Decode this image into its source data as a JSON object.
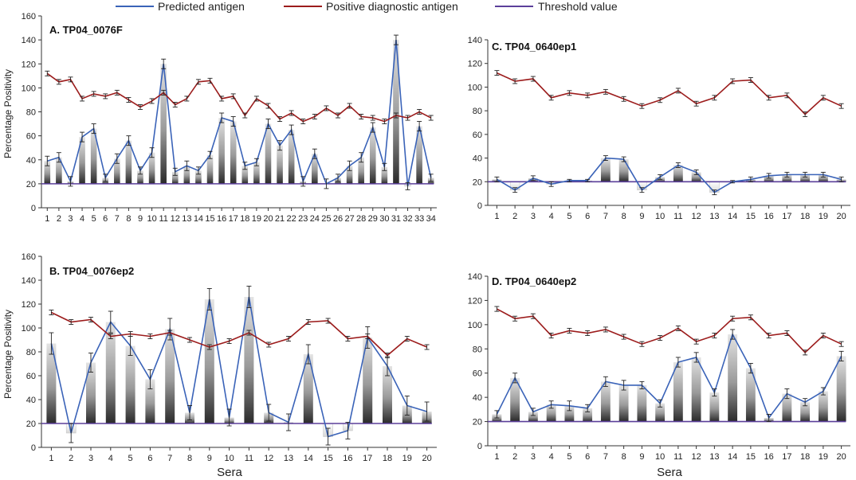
{
  "legend": {
    "predicted": "Predicted antigen",
    "positive": "Positive diagnostic antigen",
    "threshold": "Threshold value"
  },
  "colors": {
    "predicted": "#3a63b8",
    "positive": "#9c1c1c",
    "threshold": "#5b3f9a",
    "axis": "#333333",
    "error": "#222222"
  },
  "chart_data": [
    {
      "id": "A",
      "type": "bar",
      "title": "A. TP04_0076F",
      "ylabel": "Percentage Positivity",
      "xlabel": "",
      "ylim": [
        0,
        160
      ],
      "yticks": [
        0,
        20,
        40,
        60,
        80,
        100,
        120,
        140,
        160
      ],
      "categories": [
        "1",
        "2",
        "3",
        "4",
        "5",
        "6",
        "7",
        "8",
        "9",
        "10",
        "11",
        "12",
        "13",
        "14",
        "15",
        "16",
        "17",
        "18",
        "19",
        "20",
        "21",
        "22",
        "23",
        "24",
        "25",
        "26",
        "27",
        "28",
        "29",
        "30",
        "31",
        "32",
        "33",
        "34"
      ],
      "threshold": 20,
      "series": [
        {
          "name": "Predicted antigen",
          "values": [
            39,
            42,
            22,
            59,
            66,
            25,
            41,
            56,
            31,
            46,
            120,
            30,
            35,
            31,
            44,
            75,
            72,
            35,
            38,
            70,
            52,
            65,
            22,
            45,
            20,
            25,
            35,
            42,
            67,
            34,
            140,
            18,
            68,
            25
          ],
          "errors": [
            4,
            4,
            4,
            4,
            4,
            3,
            4,
            4,
            3,
            4,
            4,
            3,
            4,
            3,
            3,
            4,
            4,
            3,
            3,
            4,
            4,
            4,
            4,
            4,
            4,
            3,
            4,
            4,
            4,
            3,
            4,
            3,
            4,
            3
          ]
        },
        {
          "name": "Positive diagnostic antigen",
          "values": [
            112,
            105,
            107,
            91,
            95,
            93,
            96,
            90,
            84,
            89,
            96,
            86,
            91,
            105,
            106,
            91,
            93,
            77,
            91,
            85,
            74,
            79,
            72,
            76,
            83,
            77,
            85,
            76,
            75,
            72,
            77,
            75,
            80,
            75
          ],
          "errors": [
            2,
            2,
            2,
            2,
            2,
            2,
            2,
            2,
            2,
            2,
            2,
            2,
            2,
            2,
            2,
            2,
            2,
            2,
            2,
            2,
            2,
            2,
            2,
            2,
            2,
            2,
            2,
            2,
            2,
            2,
            2,
            2,
            2,
            2
          ]
        }
      ]
    },
    {
      "id": "B",
      "type": "bar",
      "title": "B. TP04_0076ep2",
      "ylabel": "Percentage Positivity",
      "xlabel": "Sera",
      "ylim": [
        0,
        160
      ],
      "yticks": [
        0,
        20,
        40,
        60,
        80,
        100,
        120,
        140,
        160
      ],
      "categories": [
        "1",
        "2",
        "3",
        "4",
        "5",
        "6",
        "7",
        "8",
        "9",
        "10",
        "11",
        "12",
        "13",
        "14",
        "15",
        "16",
        "17",
        "18",
        "19",
        "20"
      ],
      "threshold": 20,
      "series": [
        {
          "name": "Predicted antigen",
          "values": [
            87,
            12,
            71,
            105,
            85,
            57,
            99,
            29,
            124,
            25,
            126,
            29,
            21,
            78,
            9,
            14,
            92,
            68,
            35,
            30
          ],
          "errors": [
            9,
            8,
            8,
            9,
            8,
            8,
            9,
            6,
            9,
            7,
            9,
            7,
            7,
            8,
            7,
            7,
            9,
            8,
            8,
            8
          ]
        },
        {
          "name": "Positive diagnostic antigen",
          "values": [
            113,
            105,
            107,
            93,
            95,
            93,
            96,
            90,
            84,
            89,
            96,
            86,
            91,
            105,
            106,
            91,
            93,
            77,
            91,
            84
          ],
          "errors": [
            2,
            2,
            2,
            2,
            2,
            2,
            2,
            2,
            2,
            2,
            2,
            2,
            2,
            2,
            2,
            2,
            2,
            2,
            2,
            2
          ]
        }
      ]
    },
    {
      "id": "C",
      "type": "bar",
      "title": "C. TP04_0640ep1",
      "ylabel": "",
      "xlabel": "",
      "ylim": [
        0,
        140
      ],
      "yticks": [
        0,
        20,
        40,
        60,
        80,
        100,
        120,
        140
      ],
      "categories": [
        "1",
        "2",
        "3",
        "4",
        "5",
        "6",
        "7",
        "8",
        "9",
        "10",
        "11",
        "12",
        "13",
        "14",
        "15",
        "16",
        "17",
        "18",
        "19",
        "20"
      ],
      "threshold": 20,
      "series": [
        {
          "name": "Predicted antigen",
          "values": [
            22,
            13,
            23,
            18,
            21,
            21,
            40,
            39,
            13,
            24,
            34,
            28,
            11,
            20,
            22,
            25,
            26,
            26,
            26,
            22
          ],
          "errors": [
            2,
            2,
            2,
            2,
            1,
            1,
            2,
            2,
            2,
            2,
            2,
            2,
            2,
            1,
            2,
            2,
            2,
            2,
            2,
            2
          ]
        },
        {
          "name": "Positive diagnostic antigen",
          "values": [
            112,
            105,
            107,
            91,
            95,
            93,
            96,
            90,
            84,
            89,
            97,
            86,
            91,
            105,
            106,
            91,
            93,
            77,
            91,
            84
          ],
          "errors": [
            2,
            2,
            2,
            2,
            2,
            2,
            2,
            2,
            2,
            2,
            2,
            2,
            2,
            2,
            2,
            2,
            2,
            2,
            2,
            2
          ]
        }
      ]
    },
    {
      "id": "D",
      "type": "bar",
      "title": "D. TP04_0640ep2",
      "ylabel": "",
      "xlabel": "Sera",
      "ylim": [
        0,
        140
      ],
      "yticks": [
        0,
        20,
        40,
        60,
        80,
        100,
        120,
        140
      ],
      "categories": [
        "1",
        "2",
        "3",
        "4",
        "5",
        "6",
        "7",
        "8",
        "9",
        "10",
        "11",
        "12",
        "13",
        "14",
        "15",
        "16",
        "17",
        "18",
        "19",
        "20"
      ],
      "threshold": 20,
      "series": [
        {
          "name": "Predicted antigen",
          "values": [
            26,
            56,
            28,
            34,
            33,
            31,
            53,
            50,
            50,
            35,
            69,
            73,
            44,
            92,
            64,
            23,
            43,
            36,
            45,
            74
          ],
          "errors": [
            3,
            4,
            3,
            3,
            4,
            3,
            4,
            4,
            3,
            3,
            4,
            4,
            3,
            4,
            4,
            3,
            4,
            3,
            3,
            4
          ]
        },
        {
          "name": "Positive diagnostic antigen",
          "values": [
            113,
            105,
            107,
            91,
            95,
            93,
            96,
            90,
            84,
            89,
            97,
            86,
            91,
            105,
            106,
            91,
            93,
            77,
            91,
            84
          ],
          "errors": [
            2,
            2,
            2,
            2,
            2,
            2,
            2,
            2,
            2,
            2,
            2,
            2,
            2,
            2,
            2,
            2,
            2,
            2,
            2,
            2
          ]
        }
      ]
    }
  ]
}
